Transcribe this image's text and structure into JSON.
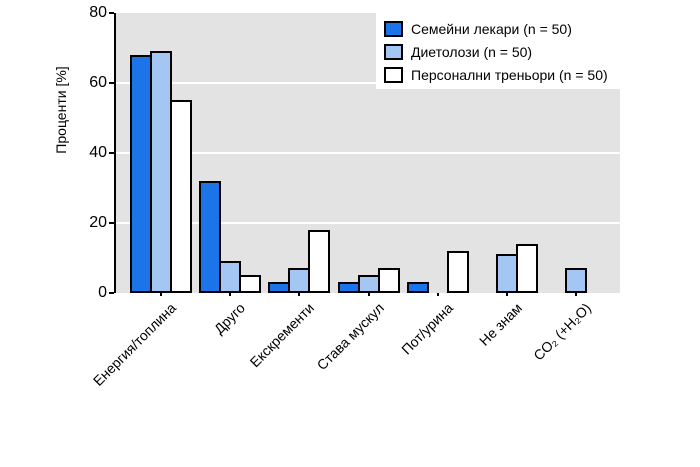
{
  "figure": {
    "background": "#ffffff",
    "plot_background": "#e3e3e3",
    "grid_color": "#ffffff",
    "axis_color": "#000000",
    "bar_border_color": "#000000"
  },
  "chart_data": {
    "type": "bar",
    "title": "",
    "xlabel": "",
    "ylabel": "Проценти [%]",
    "ylim": [
      0,
      80
    ],
    "yticks": [
      0,
      20,
      40,
      60,
      80
    ],
    "grid": "horizontal",
    "legend_position": "top-right",
    "categories": [
      "Енергия/топлина",
      "Друго",
      "Екскременти",
      "Става мускул",
      "Пот/урина",
      "Не знам",
      "CO₂ (+H₂O)"
    ],
    "series": [
      {
        "name": "Семейни лекари (n = 50)",
        "color": "#1b74e8",
        "values": [
          67,
          31,
          2,
          2,
          2,
          0,
          0
        ]
      },
      {
        "name": "Диетолози (n = 50)",
        "color": "#a3c6f3",
        "values": [
          68,
          8,
          6,
          4,
          0,
          10,
          6
        ]
      },
      {
        "name": "Персонални треньори (n = 50)",
        "color": "#ffffff",
        "values": [
          54,
          4,
          17,
          6,
          11,
          13,
          0
        ]
      }
    ]
  }
}
